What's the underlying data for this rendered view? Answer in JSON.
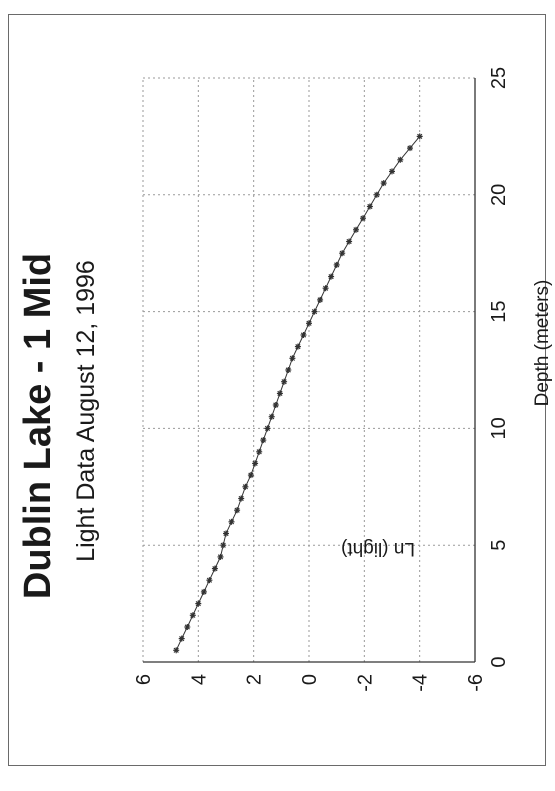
{
  "chart_data": {
    "type": "scatter",
    "title": "Dublin Lake - 1 Mid",
    "subtitle": "Light Data  August 12, 1996",
    "xlabel": "Depth (meters)",
    "ylabel": "Ln (light)",
    "xlim": [
      0,
      25
    ],
    "ylim": [
      -6,
      6
    ],
    "x_ticks": [
      "0",
      "5",
      "10",
      "15",
      "20",
      "25"
    ],
    "y_ticks": [
      "6",
      "4",
      "2",
      "0",
      "-2",
      "-4",
      "-6"
    ],
    "grid": true,
    "rotation": "rotated 90 degrees counter-clockwise",
    "series": [
      {
        "marker": "asterisk",
        "color": "#333333",
        "x": [
          0.5,
          1.0,
          1.5,
          2.0,
          2.5,
          3.0,
          3.5,
          4.0,
          4.5,
          5.0,
          5.5,
          6.0,
          6.5,
          7.0,
          7.5,
          8.0,
          8.5,
          9.0,
          9.5,
          10.0,
          10.5,
          11.0,
          11.5,
          12.0,
          12.5,
          13.0,
          13.5,
          14.0,
          14.5,
          15.0,
          15.5,
          16.0,
          16.5,
          17.0,
          17.5,
          18.0,
          18.5,
          19.0,
          19.5,
          20.0,
          20.5,
          21.0,
          21.5,
          22.0,
          22.5
        ],
        "y": [
          4.8,
          4.6,
          4.4,
          4.2,
          4.0,
          3.8,
          3.6,
          3.4,
          3.2,
          3.1,
          3.0,
          2.8,
          2.6,
          2.45,
          2.3,
          2.1,
          1.95,
          1.8,
          1.65,
          1.5,
          1.35,
          1.2,
          1.05,
          0.9,
          0.75,
          0.6,
          0.4,
          0.2,
          0.0,
          -0.2,
          -0.4,
          -0.6,
          -0.8,
          -1.0,
          -1.2,
          -1.45,
          -1.7,
          -1.95,
          -2.2,
          -2.45,
          -2.7,
          -3.0,
          -3.3,
          -3.65,
          -4.0
        ]
      }
    ]
  }
}
